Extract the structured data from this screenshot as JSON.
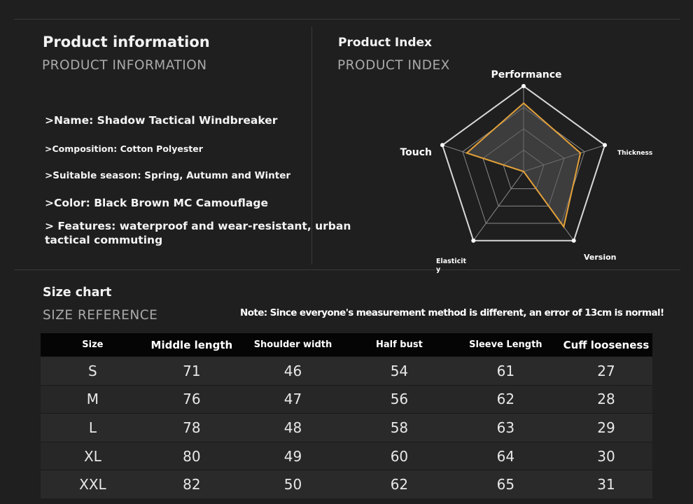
{
  "product_info": {
    "title": "Product information",
    "subtitle": "PRODUCT INFORMATION",
    "name": ">Name: Shadow Tactical Windbreaker",
    "composition": ">Composition: Cotton Polyester",
    "season": ">Suitable season: Spring, Autumn and Winter",
    "color": ">Color: Black Brown MC Camouflage",
    "features_line1": "> Features: waterproof and wear-resistant, urban",
    "features_line2": "tactical commuting"
  },
  "product_index": {
    "title": "Product Index",
    "subtitle": "PRODUCT INDEX"
  },
  "colors": {
    "background": "#1f1f1f",
    "radar_fill": "#565656",
    "radar_line": "#e3a13a",
    "grid": "#8a8a8a"
  },
  "chart_data": [
    {
      "type": "radar",
      "axes": [
        "Performance",
        "Thickness",
        "Version",
        "Elasticity",
        "Touch"
      ],
      "axis_label_display": [
        "Performance",
        "Thickness",
        "Version",
        "Elasticit|y",
        "Touch"
      ],
      "range": [
        0,
        5
      ],
      "grid_levels": 4,
      "values": [
        4,
        3.5,
        4,
        0,
        3.5
      ]
    },
    {
      "type": "table",
      "title": "Size chart",
      "subtitle": "SIZE REFERENCE",
      "note": "Note: Since everyone's measurement method is different, an error of 13cm is normal!",
      "columns": [
        "Size",
        "Middle length",
        "Shoulder width",
        "Half bust",
        "Sleeve Length",
        "Cuff looseness"
      ],
      "rows": [
        [
          "S",
          "71",
          "46",
          "54",
          "61",
          "27"
        ],
        [
          "M",
          "76",
          "47",
          "56",
          "62",
          "28"
        ],
        [
          "L",
          "78",
          "48",
          "58",
          "63",
          "29"
        ],
        [
          "XL",
          "80",
          "49",
          "60",
          "64",
          "30"
        ],
        [
          "XXL",
          "82",
          "50",
          "62",
          "65",
          "31"
        ]
      ]
    }
  ]
}
